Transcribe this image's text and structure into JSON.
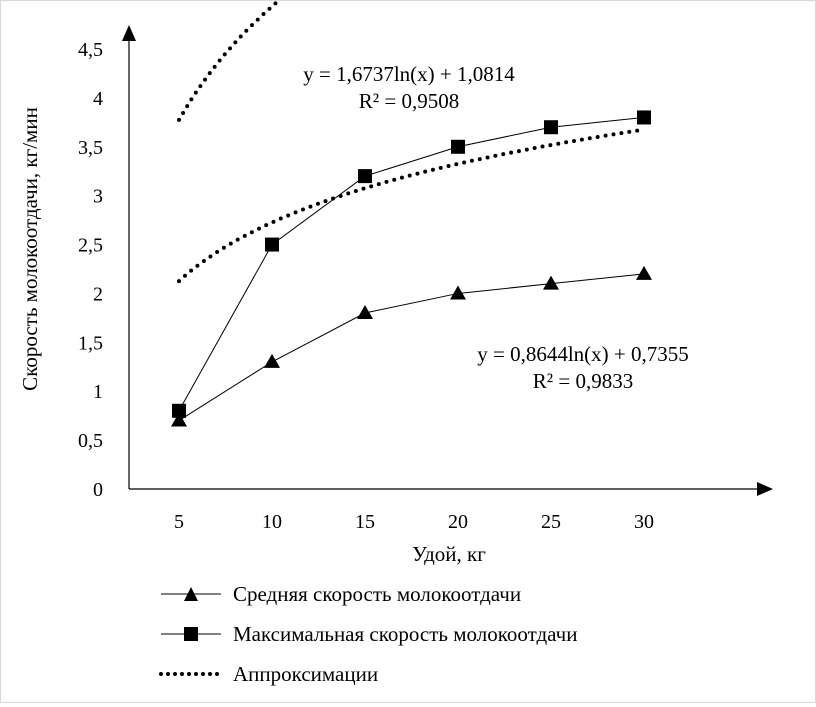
{
  "chart_data": {
    "type": "line",
    "x": [
      5,
      10,
      15,
      20,
      25,
      30
    ],
    "series": [
      {
        "name": "Средняя скорость молокоотдачи",
        "values": [
          0.7,
          1.3,
          1.8,
          2.0,
          2.1,
          2.2
        ],
        "marker": "triangle",
        "color": "#000000"
      },
      {
        "name": "Максимальная скорость молокоотдачи",
        "values": [
          0.8,
          2.5,
          3.2,
          3.5,
          3.7,
          3.8
        ],
        "marker": "square",
        "color": "#000000"
      }
    ],
    "approximation": {
      "name": "Аппроксимации",
      "style": "dotted",
      "curves": [
        {
          "fits": "Максимальная скорость молокоотдачи",
          "a": 1.6737,
          "b": 1.0814,
          "equation": "y = 1,6737ln(x) + 1,0814",
          "r2": "R² = 0,9508"
        },
        {
          "fits": "Средняя скорость молокоотдачи",
          "a": 0.8644,
          "b": 0.7355,
          "equation": "y = 0,8644ln(x) + 0,7355",
          "r2": "R² = 0,9833"
        }
      ]
    },
    "xlabel": "Удой, кг",
    "ylabel": "Скорость молокоотдачи, кг/мин",
    "x_ticks": [
      "5",
      "10",
      "15",
      "20",
      "25",
      "30"
    ],
    "y_ticks": [
      "0",
      "0,5",
      "1",
      "1,5",
      "2",
      "2,5",
      "3",
      "3,5",
      "4",
      "4,5"
    ],
    "ylim": [
      0,
      4.5
    ],
    "grid": false,
    "legend_position": "bottom-left"
  }
}
